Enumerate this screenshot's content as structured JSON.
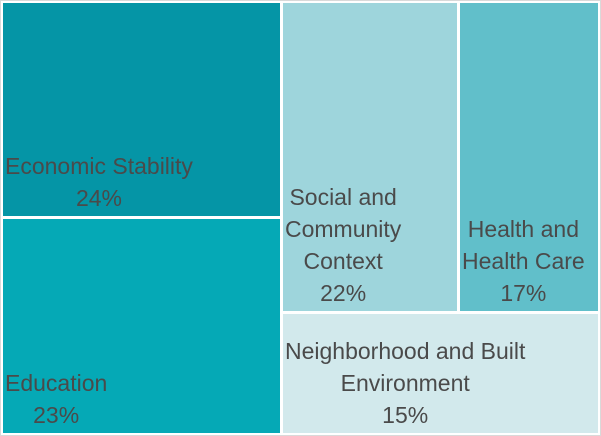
{
  "chart_data": {
    "type": "treemap",
    "title": "",
    "categories": [
      "Economic Stability",
      "Education",
      "Social and Community Context",
      "Health and Health Care",
      "Neighborhood and Built Environment"
    ],
    "values": [
      24,
      23,
      22,
      17,
      15
    ],
    "unit": "%",
    "legend_position": "none",
    "colors": [
      "#0595A6",
      "#05A9B6",
      "#9ED5DC",
      "#61BFCA",
      "#D2E9EC"
    ]
  },
  "cells": [
    {
      "label": "Economic Stability",
      "lines": [
        "Economic Stability"
      ],
      "pct": "24%",
      "value": 24,
      "color": "#0595A6"
    },
    {
      "label": "Education",
      "lines": [
        "Education"
      ],
      "pct": "23%",
      "value": 23,
      "color": "#05A9B6"
    },
    {
      "label": "Social and Community Context",
      "lines": [
        "Social and",
        "Community",
        "Context"
      ],
      "pct": "22%",
      "value": 22,
      "color": "#9ED5DC"
    },
    {
      "label": "Health and Health Care",
      "lines": [
        "Health and",
        "Health Care"
      ],
      "pct": "17%",
      "value": 17,
      "color": "#61BFCA"
    },
    {
      "label": "Neighborhood and Built Environment",
      "lines": [
        "Neighborhood and Built",
        "Environment"
      ],
      "pct": "15%",
      "value": 15,
      "color": "#D2E9EC"
    }
  ],
  "style": {
    "text_color": "#4A4A4A",
    "background": "#FFFFFF",
    "border_color": "#D9D9D9"
  }
}
